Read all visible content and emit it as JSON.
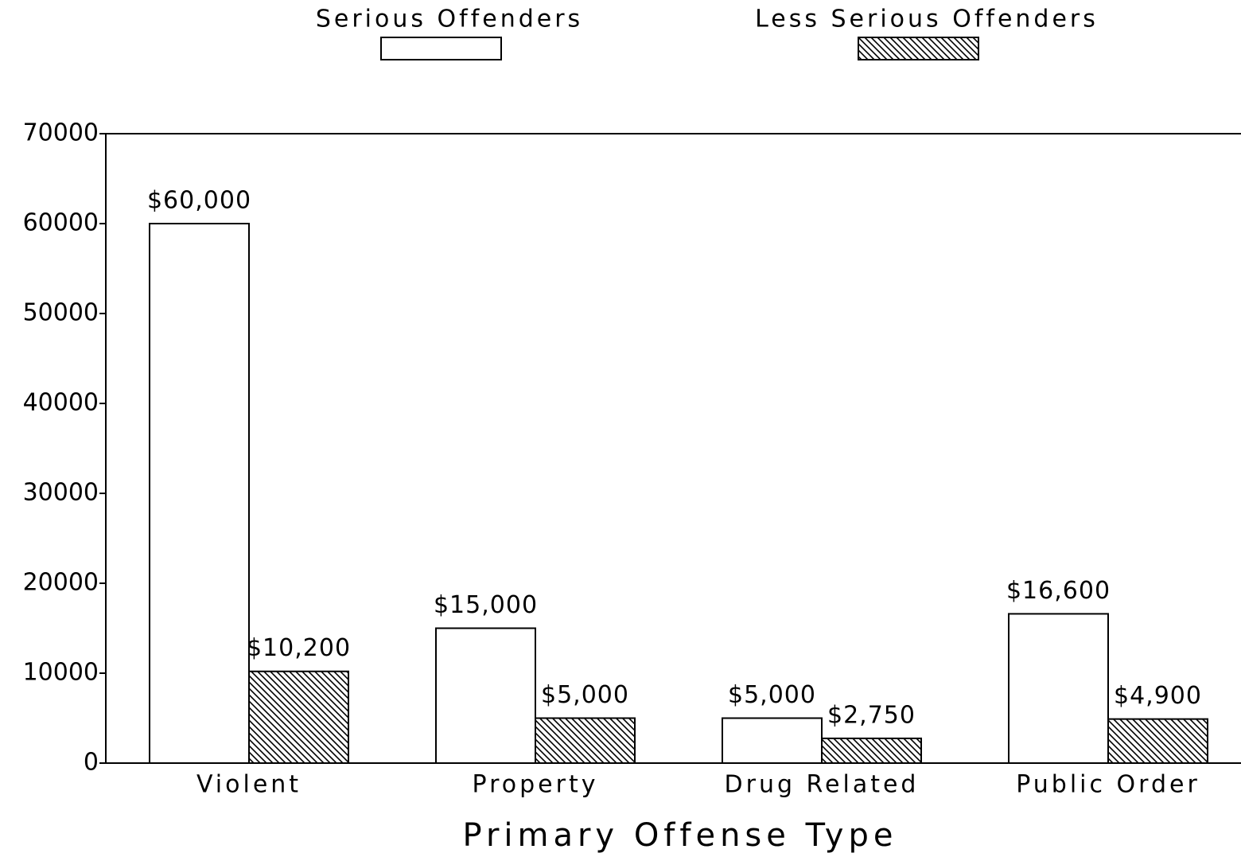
{
  "chart_data": {
    "type": "bar",
    "xlabel": "Primary Offense Type",
    "categories": [
      "Violent",
      "Property",
      "Drug Related",
      "Public Order"
    ],
    "series": [
      {
        "name": "Serious Offenders",
        "color": "#ffffff",
        "pattern": "none",
        "values": [
          60000,
          15000,
          5000,
          16600
        ],
        "value_labels": [
          "$60,000",
          "$15,000",
          "$5,000",
          "$16,600"
        ]
      },
      {
        "name": "Less Serious Offenders",
        "color": "#ffffff",
        "pattern": "hatch",
        "values": [
          10200,
          5000,
          2750,
          4900
        ],
        "value_labels": [
          "$10,200",
          "$5,000",
          "$2,750",
          "$4,900"
        ]
      }
    ],
    "ylim": [
      0,
      70000
    ],
    "yticks": [
      0,
      10000,
      20000,
      30000,
      40000,
      50000,
      60000,
      70000
    ],
    "grid": false,
    "legend": "top"
  }
}
